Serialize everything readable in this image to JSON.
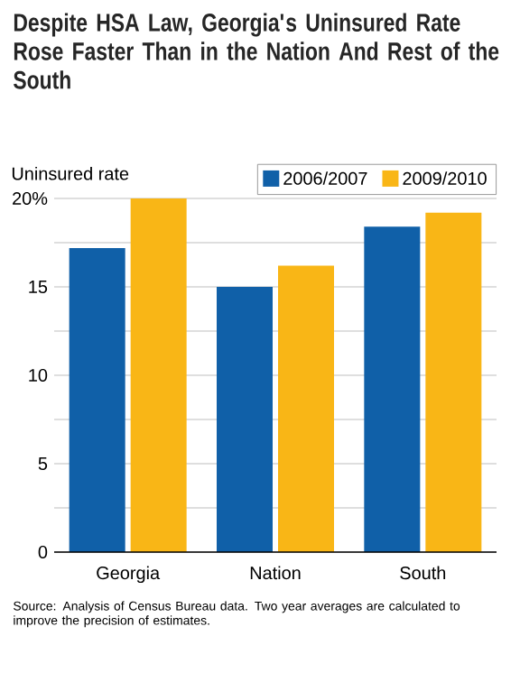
{
  "chart_data": {
    "type": "bar",
    "title": "Despite HSA Law, Georgia's Uninsured Rate Rose Faster Than in the Nation And Rest of the South",
    "ylabel": "Uninsured rate",
    "categories": [
      "Georgia",
      "Nation",
      "South"
    ],
    "series": [
      {
        "name": "2006/2007",
        "color": "#1060a8",
        "values": [
          17.2,
          15.0,
          18.4
        ]
      },
      {
        "name": "2009/2010",
        "color": "#f9b616",
        "values": [
          20.0,
          16.2,
          19.2
        ]
      }
    ],
    "ylim": [
      0,
      20
    ],
    "yticks": [
      0,
      {
        "value": 2.5,
        "label": null
      },
      5,
      {
        "value": 7.5,
        "label": null
      },
      10,
      {
        "value": 12.5,
        "label": null
      },
      15,
      {
        "value": 17.5,
        "label": null
      },
      {
        "value": 20,
        "label": "20%"
      }
    ],
    "grid": "y",
    "legend": "top right",
    "annotations": [
      "Source: Analysis of Census Bureau data. Two year averages are calculated to improve the precision of estimates."
    ]
  }
}
